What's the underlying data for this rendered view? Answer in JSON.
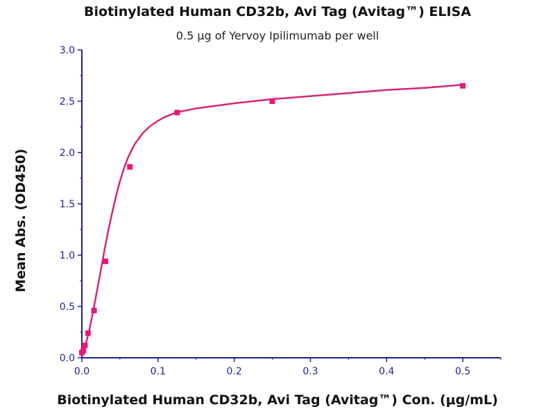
{
  "chart_data": {
    "type": "scatter",
    "title": "Biotinylated Human CD32b, Avi Tag (Avitag™) ELISA",
    "subtitle": "0.5 μg of Yervoy Ipilimumab per well",
    "xlabel": "Biotinylated Human CD32b, Avi Tag (Avitag™) Con. (μg/mL)",
    "ylabel": "Mean Abs. (OD450)",
    "xlim": [
      0,
      0.55
    ],
    "ylim": [
      0,
      3.0
    ],
    "x_ticks": [
      "0.0",
      "0.1",
      "0.2",
      "0.3",
      "0.4",
      "0.5"
    ],
    "y_ticks": [
      "0.0",
      "0.5",
      "1.0",
      "1.5",
      "2.0",
      "2.5",
      "3.0"
    ],
    "grid": false,
    "colors": {
      "points": "#e8197a",
      "curve": "#d42577",
      "axes": "#1f1f8f"
    },
    "series": [
      {
        "x": [
          0.0,
          0.002,
          0.004,
          0.008,
          0.016,
          0.031,
          0.063,
          0.125,
          0.25,
          0.5
        ],
        "y": [
          0.05,
          0.07,
          0.12,
          0.24,
          0.46,
          0.94,
          1.86,
          2.39,
          2.5,
          2.65
        ]
      }
    ],
    "fit_curve": {
      "x": [
        0,
        0.005,
        0.01,
        0.015,
        0.02,
        0.025,
        0.03,
        0.035,
        0.04,
        0.045,
        0.05,
        0.055,
        0.06,
        0.065,
        0.07,
        0.08,
        0.09,
        0.1,
        0.11,
        0.12,
        0.13,
        0.15,
        0.17,
        0.2,
        0.25,
        0.3,
        0.35,
        0.4,
        0.45,
        0.5
      ],
      "y": [
        0.03,
        0.13,
        0.28,
        0.46,
        0.66,
        0.86,
        1.06,
        1.25,
        1.42,
        1.58,
        1.72,
        1.84,
        1.94,
        2.02,
        2.09,
        2.19,
        2.26,
        2.31,
        2.35,
        2.38,
        2.4,
        2.43,
        2.45,
        2.48,
        2.52,
        2.55,
        2.58,
        2.61,
        2.63,
        2.66
      ]
    }
  }
}
